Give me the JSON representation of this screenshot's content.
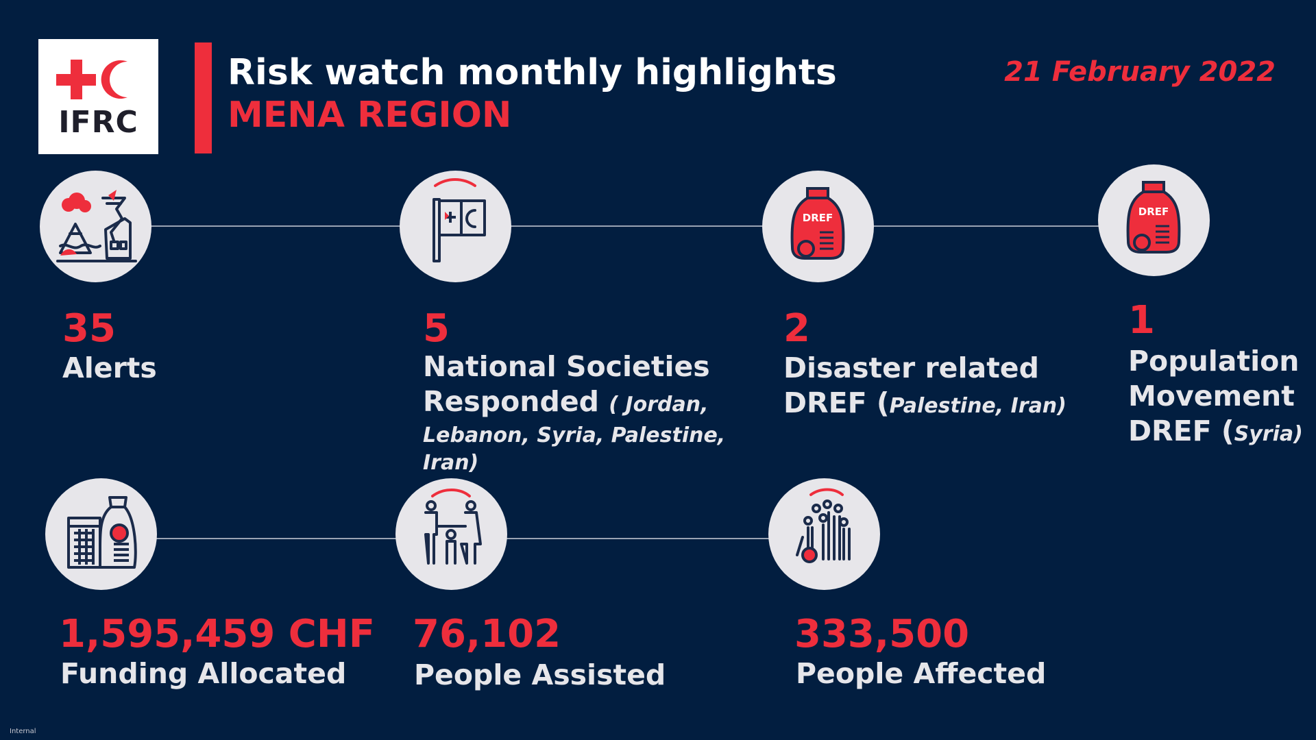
{
  "logo": {
    "text": "IFRC"
  },
  "header": {
    "title": "Risk watch monthly highlights",
    "subtitle": "MENA REGION",
    "date": "21 February 2022"
  },
  "colors": {
    "background": "#021e40",
    "accent": "#ee2e3c",
    "circle": "#e7e6ea",
    "icon_stroke": "#1b2b4a"
  },
  "stats": {
    "alerts": {
      "value": "35",
      "label": "Alerts",
      "icon": "hazards-icon"
    },
    "national_societies": {
      "value": "5",
      "label_line1": "National Societies",
      "label_line2": "Responded",
      "detail_a": "( Jordan,",
      "detail_b": "Lebanon, Syria, Palestine, Iran)",
      "icon": "red-cross-crescent-flag-icon"
    },
    "disaster_dref": {
      "value": "2",
      "label_line1": "Disaster related",
      "label_line2": "DREF (",
      "detail": "Palestine, Iran)",
      "icon": "dref-bag-icon",
      "icon_text": "DREF"
    },
    "population_dref": {
      "value": "1",
      "label_line1": "Population",
      "label_line2": "Movement",
      "label_line3": "DREF (",
      "detail": "Syria)",
      "icon": "dref-bag-icon",
      "icon_text": "DREF"
    },
    "funding": {
      "value": "1,595,459 CHF",
      "label": "Funding Allocated",
      "icon": "funding-calculator-icon"
    },
    "people_assisted": {
      "value": "76,102",
      "label": "People Assisted",
      "icon": "family-icon"
    },
    "people_affected": {
      "value": "333,500",
      "label": "People Affected",
      "icon": "crowd-icon"
    }
  },
  "footer": {
    "note": "Internal"
  }
}
